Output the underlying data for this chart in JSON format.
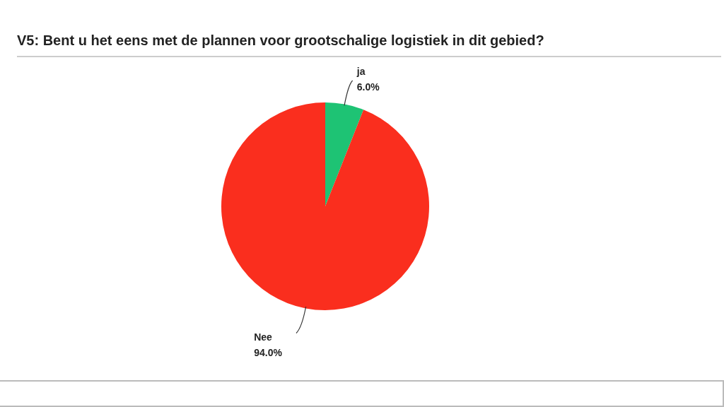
{
  "chart_data": {
    "type": "pie",
    "title": "V5: Bent u het eens met de plannen voor grootschalige logistiek in dit gebied?",
    "categories": [
      "ja",
      "Nee"
    ],
    "values": [
      6,
      94
    ],
    "value_labels": [
      "6.0%",
      "94.0%"
    ],
    "colors": [
      "#1ec374",
      "#fa2e1e"
    ],
    "legend": false
  }
}
